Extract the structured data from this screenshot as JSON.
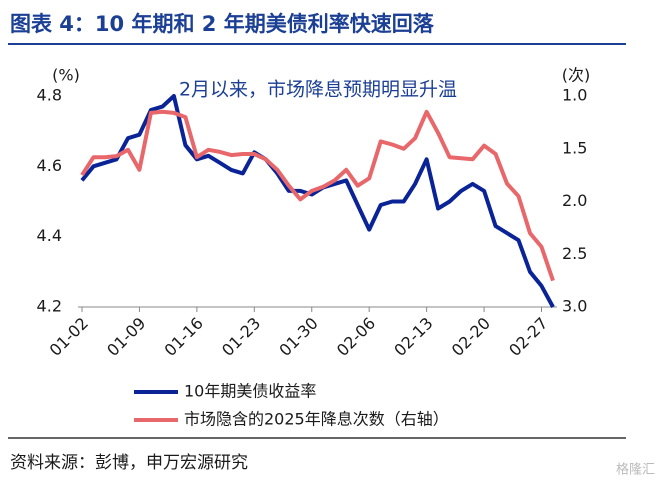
{
  "chart_data": {
    "type": "line",
    "title": "图表 4：10 年期和 2 年期美债利率快速回落",
    "annotation": "2月以来，市场降息预期明显升温",
    "y_unit": "(%)",
    "y2_unit": "(次)",
    "source": "资料来源：彭博，申万宏源研究",
    "watermark": "格隆汇",
    "categories": [
      "01-02",
      null,
      null,
      null,
      null,
      "01-09",
      null,
      null,
      null,
      null,
      "01-16",
      null,
      null,
      null,
      null,
      "01-23",
      null,
      null,
      null,
      null,
      "01-30",
      null,
      null,
      null,
      null,
      "02-06",
      null,
      null,
      null,
      null,
      "02-13",
      null,
      null,
      null,
      null,
      "02-20",
      null,
      null,
      null,
      null,
      "02-27",
      null
    ],
    "ylim": [
      4.2,
      4.8
    ],
    "yticks": [
      4.2,
      4.4,
      4.6,
      4.8
    ],
    "y2lim": [
      1.0,
      3.0
    ],
    "y2_reversed": true,
    "y2ticks": [
      {
        "value": 1.0,
        "label": "1.0"
      },
      {
        "value": 1.5,
        "label": "1.5"
      },
      {
        "value": 2.0,
        "label": "2.0"
      },
      {
        "value": 2.5,
        "label": "2.5"
      },
      {
        "value": 3.0,
        "label": "3.0"
      }
    ],
    "grid": false,
    "legend": "bottom",
    "series": [
      {
        "name": "10年期美债收益率",
        "color": "#0a2396",
        "values": [
          4.56,
          4.6,
          4.61,
          4.62,
          4.68,
          4.69,
          4.76,
          4.77,
          4.8,
          4.66,
          4.62,
          4.63,
          4.61,
          4.59,
          4.58,
          4.64,
          4.62,
          4.58,
          4.53,
          4.53,
          4.52,
          4.54,
          4.55,
          4.56,
          4.49,
          4.42,
          4.49,
          4.5,
          4.5,
          4.55,
          4.62,
          4.48,
          4.5,
          4.53,
          4.55,
          4.53,
          4.43,
          4.41,
          4.39,
          4.3,
          4.26,
          4.2
        ]
      },
      {
        "name": "市场隐含的2025年降息次数（右轴）",
        "color": "#e8676a",
        "axis": "y2",
        "values": [
          1.75,
          1.58,
          1.58,
          1.57,
          1.51,
          1.7,
          1.16,
          1.15,
          1.16,
          1.2,
          1.58,
          1.51,
          1.53,
          1.56,
          1.55,
          1.55,
          1.6,
          1.7,
          1.85,
          1.98,
          1.9,
          1.86,
          1.8,
          1.7,
          1.85,
          1.78,
          1.43,
          1.46,
          1.5,
          1.4,
          1.15,
          1.35,
          1.58,
          1.59,
          1.6,
          1.47,
          1.55,
          1.83,
          1.95,
          2.3,
          2.43,
          2.75
        ]
      }
    ]
  }
}
